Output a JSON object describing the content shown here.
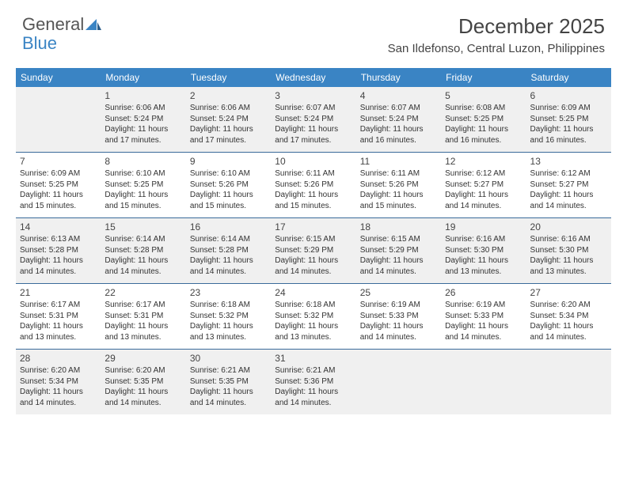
{
  "logo": {
    "text1": "General",
    "text2": "Blue"
  },
  "title": "December 2025",
  "location": "San Ildefonso, Central Luzon, Philippines",
  "colors": {
    "header_bg": "#3a84c4",
    "row_divider": "#3a6a9a",
    "grey_cell": "#f0f0f0",
    "text": "#333333",
    "title_text": "#444444"
  },
  "day_names": [
    "Sunday",
    "Monday",
    "Tuesday",
    "Wednesday",
    "Thursday",
    "Friday",
    "Saturday"
  ],
  "grey_rows": [
    0,
    2,
    4
  ],
  "weeks": [
    [
      {
        "num": "",
        "sunrise": "",
        "sunset": "",
        "daylight": ""
      },
      {
        "num": "1",
        "sunrise": "Sunrise: 6:06 AM",
        "sunset": "Sunset: 5:24 PM",
        "daylight": "Daylight: 11 hours and 17 minutes."
      },
      {
        "num": "2",
        "sunrise": "Sunrise: 6:06 AM",
        "sunset": "Sunset: 5:24 PM",
        "daylight": "Daylight: 11 hours and 17 minutes."
      },
      {
        "num": "3",
        "sunrise": "Sunrise: 6:07 AM",
        "sunset": "Sunset: 5:24 PM",
        "daylight": "Daylight: 11 hours and 17 minutes."
      },
      {
        "num": "4",
        "sunrise": "Sunrise: 6:07 AM",
        "sunset": "Sunset: 5:24 PM",
        "daylight": "Daylight: 11 hours and 16 minutes."
      },
      {
        "num": "5",
        "sunrise": "Sunrise: 6:08 AM",
        "sunset": "Sunset: 5:25 PM",
        "daylight": "Daylight: 11 hours and 16 minutes."
      },
      {
        "num": "6",
        "sunrise": "Sunrise: 6:09 AM",
        "sunset": "Sunset: 5:25 PM",
        "daylight": "Daylight: 11 hours and 16 minutes."
      }
    ],
    [
      {
        "num": "7",
        "sunrise": "Sunrise: 6:09 AM",
        "sunset": "Sunset: 5:25 PM",
        "daylight": "Daylight: 11 hours and 15 minutes."
      },
      {
        "num": "8",
        "sunrise": "Sunrise: 6:10 AM",
        "sunset": "Sunset: 5:25 PM",
        "daylight": "Daylight: 11 hours and 15 minutes."
      },
      {
        "num": "9",
        "sunrise": "Sunrise: 6:10 AM",
        "sunset": "Sunset: 5:26 PM",
        "daylight": "Daylight: 11 hours and 15 minutes."
      },
      {
        "num": "10",
        "sunrise": "Sunrise: 6:11 AM",
        "sunset": "Sunset: 5:26 PM",
        "daylight": "Daylight: 11 hours and 15 minutes."
      },
      {
        "num": "11",
        "sunrise": "Sunrise: 6:11 AM",
        "sunset": "Sunset: 5:26 PM",
        "daylight": "Daylight: 11 hours and 15 minutes."
      },
      {
        "num": "12",
        "sunrise": "Sunrise: 6:12 AM",
        "sunset": "Sunset: 5:27 PM",
        "daylight": "Daylight: 11 hours and 14 minutes."
      },
      {
        "num": "13",
        "sunrise": "Sunrise: 6:12 AM",
        "sunset": "Sunset: 5:27 PM",
        "daylight": "Daylight: 11 hours and 14 minutes."
      }
    ],
    [
      {
        "num": "14",
        "sunrise": "Sunrise: 6:13 AM",
        "sunset": "Sunset: 5:28 PM",
        "daylight": "Daylight: 11 hours and 14 minutes."
      },
      {
        "num": "15",
        "sunrise": "Sunrise: 6:14 AM",
        "sunset": "Sunset: 5:28 PM",
        "daylight": "Daylight: 11 hours and 14 minutes."
      },
      {
        "num": "16",
        "sunrise": "Sunrise: 6:14 AM",
        "sunset": "Sunset: 5:28 PM",
        "daylight": "Daylight: 11 hours and 14 minutes."
      },
      {
        "num": "17",
        "sunrise": "Sunrise: 6:15 AM",
        "sunset": "Sunset: 5:29 PM",
        "daylight": "Daylight: 11 hours and 14 minutes."
      },
      {
        "num": "18",
        "sunrise": "Sunrise: 6:15 AM",
        "sunset": "Sunset: 5:29 PM",
        "daylight": "Daylight: 11 hours and 14 minutes."
      },
      {
        "num": "19",
        "sunrise": "Sunrise: 6:16 AM",
        "sunset": "Sunset: 5:30 PM",
        "daylight": "Daylight: 11 hours and 13 minutes."
      },
      {
        "num": "20",
        "sunrise": "Sunrise: 6:16 AM",
        "sunset": "Sunset: 5:30 PM",
        "daylight": "Daylight: 11 hours and 13 minutes."
      }
    ],
    [
      {
        "num": "21",
        "sunrise": "Sunrise: 6:17 AM",
        "sunset": "Sunset: 5:31 PM",
        "daylight": "Daylight: 11 hours and 13 minutes."
      },
      {
        "num": "22",
        "sunrise": "Sunrise: 6:17 AM",
        "sunset": "Sunset: 5:31 PM",
        "daylight": "Daylight: 11 hours and 13 minutes."
      },
      {
        "num": "23",
        "sunrise": "Sunrise: 6:18 AM",
        "sunset": "Sunset: 5:32 PM",
        "daylight": "Daylight: 11 hours and 13 minutes."
      },
      {
        "num": "24",
        "sunrise": "Sunrise: 6:18 AM",
        "sunset": "Sunset: 5:32 PM",
        "daylight": "Daylight: 11 hours and 13 minutes."
      },
      {
        "num": "25",
        "sunrise": "Sunrise: 6:19 AM",
        "sunset": "Sunset: 5:33 PM",
        "daylight": "Daylight: 11 hours and 14 minutes."
      },
      {
        "num": "26",
        "sunrise": "Sunrise: 6:19 AM",
        "sunset": "Sunset: 5:33 PM",
        "daylight": "Daylight: 11 hours and 14 minutes."
      },
      {
        "num": "27",
        "sunrise": "Sunrise: 6:20 AM",
        "sunset": "Sunset: 5:34 PM",
        "daylight": "Daylight: 11 hours and 14 minutes."
      }
    ],
    [
      {
        "num": "28",
        "sunrise": "Sunrise: 6:20 AM",
        "sunset": "Sunset: 5:34 PM",
        "daylight": "Daylight: 11 hours and 14 minutes."
      },
      {
        "num": "29",
        "sunrise": "Sunrise: 6:20 AM",
        "sunset": "Sunset: 5:35 PM",
        "daylight": "Daylight: 11 hours and 14 minutes."
      },
      {
        "num": "30",
        "sunrise": "Sunrise: 6:21 AM",
        "sunset": "Sunset: 5:35 PM",
        "daylight": "Daylight: 11 hours and 14 minutes."
      },
      {
        "num": "31",
        "sunrise": "Sunrise: 6:21 AM",
        "sunset": "Sunset: 5:36 PM",
        "daylight": "Daylight: 11 hours and 14 minutes."
      },
      {
        "num": "",
        "sunrise": "",
        "sunset": "",
        "daylight": ""
      },
      {
        "num": "",
        "sunrise": "",
        "sunset": "",
        "daylight": ""
      },
      {
        "num": "",
        "sunrise": "",
        "sunset": "",
        "daylight": ""
      }
    ]
  ]
}
